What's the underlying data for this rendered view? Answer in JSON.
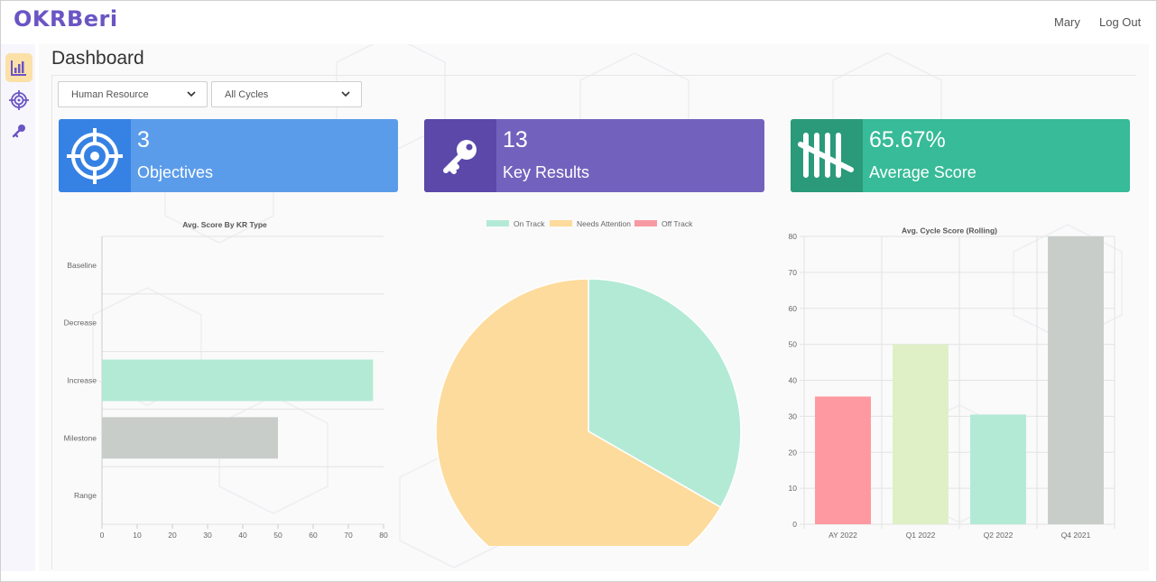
{
  "app": {
    "brand": "OKRBeri",
    "user": "Mary",
    "logout": "Log Out"
  },
  "sidebar": {
    "items": [
      {
        "name": "dashboard",
        "icon": "bar-chart-icon",
        "active": true
      },
      {
        "name": "objectives",
        "icon": "target-icon",
        "active": false
      },
      {
        "name": "key-results",
        "icon": "key-icon",
        "active": false
      }
    ]
  },
  "page": {
    "title": "Dashboard"
  },
  "filters": {
    "department": {
      "value": "Human Resource"
    },
    "cycle": {
      "value": "All Cycles"
    }
  },
  "cards": [
    {
      "value": "3",
      "label": "Objectives",
      "icon": "target-icon",
      "color": "#5b9cea",
      "icon_bg": "#3682e4"
    },
    {
      "value": "13",
      "label": "Key Results",
      "icon": "key-icon",
      "color": "#7362bd",
      "icon_bg": "#5b48a9"
    },
    {
      "value": "65.67%",
      "label": "Average Score",
      "icon": "tally-icon",
      "color": "#37bb98",
      "icon_bg": "#2a9a7a"
    }
  ],
  "chart_data": [
    {
      "type": "bar",
      "orientation": "horizontal",
      "title": "Avg. Score By KR Type",
      "categories": [
        "Baseline",
        "Decrease",
        "Increase",
        "Milestone",
        "Range"
      ],
      "values": [
        0,
        0,
        77,
        50,
        0
      ],
      "colors": [
        "#b3ead6",
        "#b3ead6",
        "#b3ead6",
        "#c8cdca",
        "#b3ead6"
      ],
      "xlim": [
        0,
        80
      ],
      "xticks": [
        0,
        10,
        20,
        30,
        40,
        50,
        60,
        70,
        80
      ],
      "grid": true
    },
    {
      "type": "pie",
      "legend": [
        "On Track",
        "Needs Attention",
        "Off Track"
      ],
      "legend_position": "top",
      "values": [
        33.3,
        66.7,
        0
      ],
      "colors": [
        "#b3ead6",
        "#fddb9c",
        "#f79aa3"
      ]
    },
    {
      "type": "bar",
      "title": "Avg. Cycle Score (Rolling)",
      "categories": [
        "AY 2022",
        "Q1 2022",
        "Q2 2022",
        "Q4 2021"
      ],
      "values": [
        35.5,
        50,
        30.5,
        80
      ],
      "colors": [
        "#fe99a1",
        "#dff0c7",
        "#b3ead6",
        "#c8cdca"
      ],
      "ylim": [
        0,
        80
      ],
      "yticks": [
        0,
        10,
        20,
        30,
        40,
        50,
        60,
        70,
        80
      ],
      "grid": true
    }
  ]
}
